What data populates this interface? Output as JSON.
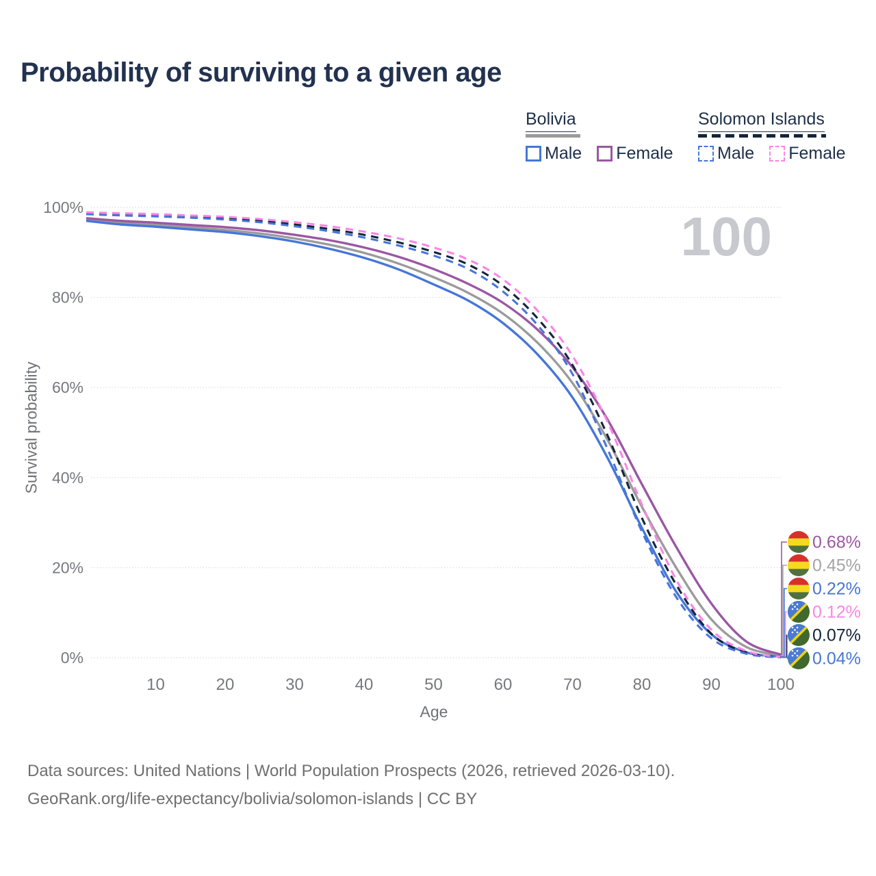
{
  "title": "Probability of surviving to a given age",
  "legend": {
    "groups": [
      {
        "label": "Bolivia",
        "line_color": "#9b9b9b",
        "line_style": "solid",
        "items": [
          {
            "label": "Male",
            "color": "#4676d7",
            "style": "solid"
          },
          {
            "label": "Female",
            "color": "#9a57a3",
            "style": "solid"
          }
        ]
      },
      {
        "label": "Solomon Islands",
        "line_color": "#142539",
        "line_style": "dashed",
        "items": [
          {
            "label": "Male",
            "color": "#4676d7",
            "style": "dashed"
          },
          {
            "label": "Female",
            "color": "#fa85e5",
            "style": "dashed"
          }
        ]
      }
    ]
  },
  "watermark": "100",
  "chart_data": {
    "type": "line",
    "title": "Probability of surviving to a given age",
    "xlabel": "Age",
    "ylabel": "Survival probability",
    "xlim": [
      0,
      100
    ],
    "ylim": [
      0,
      100
    ],
    "x_ticks": [
      10,
      20,
      30,
      40,
      50,
      60,
      70,
      80,
      90,
      100
    ],
    "y_ticks": [
      0,
      20,
      40,
      60,
      80,
      100
    ],
    "y_tick_suffix": "%",
    "grid": "horizontal-dotted",
    "ages": [
      0,
      5,
      10,
      15,
      20,
      25,
      30,
      35,
      40,
      45,
      50,
      55,
      60,
      65,
      70,
      75,
      80,
      85,
      90,
      95,
      100
    ],
    "series": [
      {
        "name": "Bolivia Both sexes",
        "color": "#9b9b9b",
        "style": "solid",
        "values": [
          97.3,
          96.6,
          96.1,
          95.6,
          95.0,
          94.2,
          93.1,
          91.7,
          89.9,
          87.5,
          84.5,
          81.0,
          76.4,
          69.9,
          61.0,
          48.5,
          33.5,
          19.8,
          8.5,
          2.4,
          0.45
        ]
      },
      {
        "name": "Bolivia Male",
        "color": "#4676d7",
        "style": "solid",
        "values": [
          97.0,
          96.2,
          95.7,
          95.1,
          94.5,
          93.6,
          92.4,
          90.8,
          88.8,
          86.2,
          82.9,
          79.3,
          74.3,
          67.3,
          57.8,
          44.5,
          28.8,
          14.5,
          5.2,
          1.2,
          0.22
        ]
      },
      {
        "name": "Bolivia Female",
        "color": "#9a57a3",
        "style": "solid",
        "values": [
          97.6,
          97.0,
          96.6,
          96.1,
          95.6,
          94.9,
          93.9,
          92.7,
          91.1,
          89.0,
          86.3,
          83.0,
          78.8,
          72.8,
          64.5,
          53.0,
          38.5,
          24.4,
          12.0,
          3.6,
          0.68
        ]
      },
      {
        "name": "Solomon Islands Both sexes",
        "color": "#142539",
        "style": "dashed",
        "values": [
          98.7,
          98.4,
          98.2,
          97.9,
          97.6,
          97.0,
          96.2,
          95.2,
          93.9,
          92.2,
          90.1,
          87.3,
          82.6,
          75.3,
          65.0,
          49.5,
          31.0,
          16.0,
          5.3,
          1.2,
          0.07
        ]
      },
      {
        "name": "Solomon Islands Male",
        "color": "#4676d7",
        "style": "dashed",
        "values": [
          98.5,
          98.2,
          98.0,
          97.7,
          97.3,
          96.7,
          95.8,
          94.7,
          93.3,
          91.5,
          89.3,
          86.3,
          81.3,
          73.8,
          63.0,
          46.5,
          28.0,
          13.3,
          4.3,
          0.9,
          0.04
        ]
      },
      {
        "name": "Solomon Islands Female",
        "color": "#fa85e5",
        "style": "dashed",
        "values": [
          98.9,
          98.7,
          98.5,
          98.2,
          97.9,
          97.4,
          96.7,
          95.8,
          94.6,
          93.1,
          91.1,
          88.4,
          84.0,
          77.0,
          67.0,
          52.5,
          34.0,
          17.1,
          6.2,
          1.5,
          0.12
        ]
      }
    ],
    "end_labels": [
      {
        "value": "0.68%",
        "flag": "bolivia",
        "color": "#9a57a3",
        "end_value": 0.68
      },
      {
        "value": "0.45%",
        "flag": "bolivia",
        "color": "#a4a4a4",
        "end_value": 0.45
      },
      {
        "value": "0.22%",
        "flag": "bolivia",
        "color": "#4676d7",
        "end_value": 0.22
      },
      {
        "value": "0.12%",
        "flag": "solomon-islands",
        "color": "#fa85e5",
        "end_value": 0.12
      },
      {
        "value": "0.07%",
        "flag": "solomon-islands",
        "color": "#142539",
        "end_value": 0.07
      },
      {
        "value": "0.04%",
        "flag": "solomon-islands",
        "color": "#4676d7",
        "end_value": 0.04
      }
    ],
    "legend_position": "top-right"
  },
  "footer": {
    "line1": "Data sources: United Nations | World Population Prospects (2026, retrieved 2026-03-10).",
    "line2": "GeoRank.org/life-expectancy/bolivia/solomon-islands | CC BY"
  }
}
